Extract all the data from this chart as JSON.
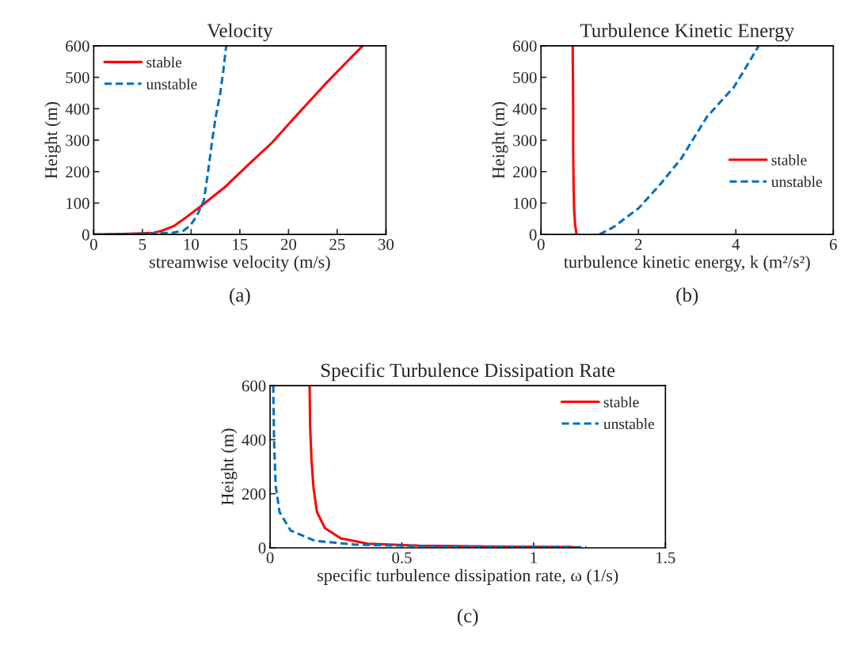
{
  "chart_data": [
    {
      "type": "line",
      "title": "Velocity",
      "xlabel": "streamwise velocity (m/s)",
      "ylabel": "Height (m)",
      "annotations": [
        "(a)"
      ],
      "xlim": [
        0,
        30
      ],
      "xticks": [
        0,
        5,
        10,
        15,
        20,
        25,
        30
      ],
      "ylim": [
        0,
        600
      ],
      "yticks": [
        0,
        100,
        200,
        300,
        400,
        500,
        600
      ],
      "legend": "top left",
      "grid": false,
      "series": [
        {
          "name": "stable",
          "color": "#ff0000",
          "line_style": "solid",
          "x": [
            0,
            3,
            6.1,
            7,
            8.3,
            9.5,
            11.0,
            13.4,
            15.8,
            18.3,
            21,
            23.7,
            25.7,
            27.6
          ],
          "values": [
            0,
            2,
            5,
            12,
            28,
            55,
            90,
            149,
            220,
            292,
            385,
            476,
            540,
            600
          ]
        },
        {
          "name": "unstable",
          "color": "#0070c0",
          "line_style": "dashed",
          "x": [
            0,
            4,
            8,
            9.2,
            9.9,
            10.6,
            11.3,
            11.7,
            12.1,
            12.5,
            13.0,
            13.3,
            13.6
          ],
          "values": [
            0,
            2,
            5,
            12,
            28,
            60,
            108,
            190,
            285,
            370,
            451,
            520,
            600
          ]
        }
      ]
    },
    {
      "type": "line",
      "title": "Turbulence Kinetic Energy",
      "xlabel": "turbulence kinetic energy, k (m²/s²)",
      "ylabel": "Height (m)",
      "annotations": [
        "(b)"
      ],
      "xlim": [
        0,
        6
      ],
      "xticks": [
        0,
        2,
        4,
        6
      ],
      "ylim": [
        0,
        600
      ],
      "yticks": [
        0,
        100,
        200,
        300,
        400,
        500,
        600
      ],
      "legend": "center right",
      "grid": false,
      "series": [
        {
          "name": "stable",
          "color": "#ff0000",
          "line_style": "solid",
          "x": [
            0.73,
            0.7,
            0.68,
            0.67,
            0.66,
            0.66,
            0.65
          ],
          "values": [
            0,
            30,
            80,
            150,
            267,
            400,
            600
          ]
        },
        {
          "name": "unstable",
          "color": "#0070c0",
          "line_style": "dashed",
          "x": [
            1.2,
            1.5,
            2.0,
            2.45,
            2.88,
            3.41,
            3.96,
            4.2,
            4.47
          ],
          "values": [
            0,
            25,
            83,
            160,
            242,
            375,
            469,
            530,
            600
          ]
        }
      ]
    },
    {
      "type": "line",
      "title": "Specific Turbulence Dissipation Rate",
      "xlabel": "specific turbulence dissipation rate, ω (1/s)",
      "ylabel": "Height (m)",
      "annotations": [
        "(c)"
      ],
      "xlim": [
        0,
        1.5
      ],
      "xticks": [
        0,
        0.5,
        1,
        1.5
      ],
      "ylim": [
        0,
        600
      ],
      "yticks": [
        0,
        200,
        400,
        600
      ],
      "legend": "top right",
      "grid": false,
      "series": [
        {
          "name": "stable",
          "color": "#ff0000",
          "line_style": "solid",
          "x": [
            0.15,
            0.152,
            0.157,
            0.165,
            0.178,
            0.208,
            0.268,
            0.37,
            0.57,
            0.8,
            1.15
          ],
          "values": [
            600,
            450,
            327,
            220,
            132,
            73,
            35,
            15,
            8,
            5,
            3
          ]
        },
        {
          "name": "unstable",
          "color": "#0070c0",
          "line_style": "dashed",
          "x": [
            0.012,
            0.015,
            0.021,
            0.036,
            0.078,
            0.17,
            0.32,
            0.6,
            0.9,
            1.2
          ],
          "values": [
            600,
            400,
            231,
            132,
            64,
            26,
            12,
            6,
            4,
            2
          ]
        }
      ]
    }
  ]
}
